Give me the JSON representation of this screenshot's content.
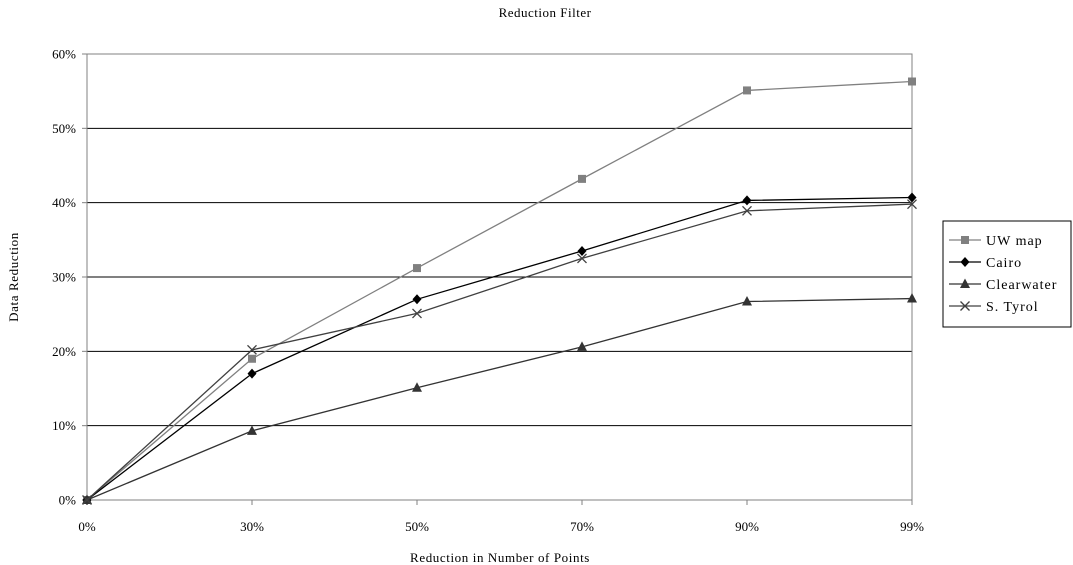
{
  "chart_data": {
    "type": "line",
    "title": "Reduction Filter",
    "xlabel": "Reduction in Number of Points",
    "ylabel": "Data Reduction",
    "categories": [
      "0%",
      "30%",
      "50%",
      "70%",
      "90%",
      "99%"
    ],
    "y_ticks": [
      "0%",
      "10%",
      "20%",
      "30%",
      "40%",
      "50%",
      "60%"
    ],
    "ylim": [
      0,
      60
    ],
    "y_unit": "%",
    "grid": "horizontal",
    "legend_position": "right",
    "series": [
      {
        "name": "UW map",
        "marker": "square",
        "color": "#808080",
        "values": [
          0,
          19,
          31.2,
          43.2,
          55.1,
          56.3
        ]
      },
      {
        "name": "Cairo",
        "marker": "diamond",
        "color": "#000000",
        "values": [
          0,
          17,
          27,
          33.5,
          40.3,
          40.7
        ]
      },
      {
        "name": "Clearwater",
        "marker": "triangle",
        "color": "#333333",
        "values": [
          0,
          9.3,
          15.1,
          20.6,
          26.7,
          27.1
        ]
      },
      {
        "name": "S. Tyrol",
        "marker": "x",
        "color": "#404040",
        "values": [
          0,
          20.2,
          25.1,
          32.5,
          38.9,
          39.8
        ]
      }
    ]
  }
}
